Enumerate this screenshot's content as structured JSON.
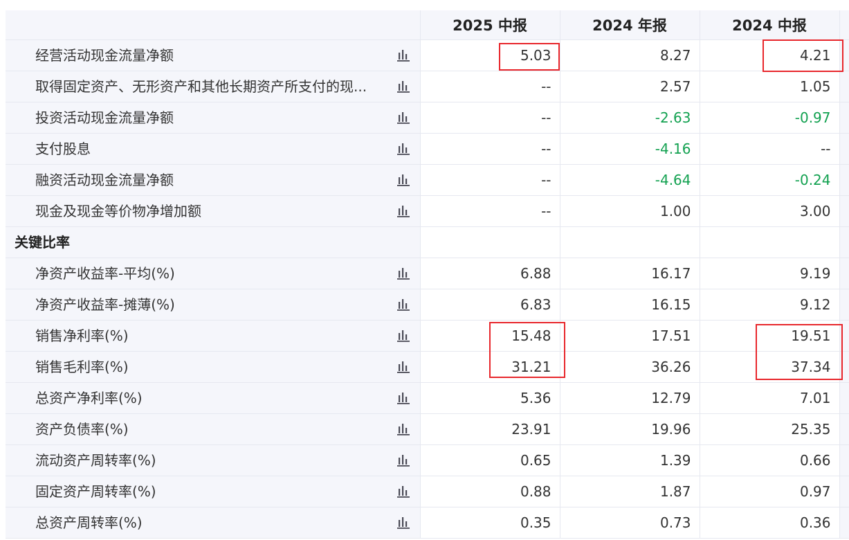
{
  "header": {
    "columns": [
      "2025 中报",
      "2024 年报",
      "2024 中报"
    ]
  },
  "rows_top": [
    {
      "label": "经营活动现金流量净额",
      "values": [
        "5.03",
        "8.27",
        "4.21"
      ],
      "neg": [
        false,
        false,
        false
      ]
    },
    {
      "label": "取得固定资产、无形资产和其他长期资产所支付的现...",
      "values": [
        "--",
        "2.57",
        "1.05"
      ],
      "neg": [
        false,
        false,
        false
      ]
    },
    {
      "label": "投资活动现金流量净额",
      "values": [
        "--",
        "-2.63",
        "-0.97"
      ],
      "neg": [
        false,
        true,
        true
      ]
    },
    {
      "label": "支付股息",
      "values": [
        "--",
        "-4.16",
        "--"
      ],
      "neg": [
        false,
        true,
        false
      ]
    },
    {
      "label": "融资活动现金流量净额",
      "values": [
        "--",
        "-4.64",
        "-0.24"
      ],
      "neg": [
        false,
        true,
        true
      ]
    },
    {
      "label": "现金及现金等价物净增加额",
      "values": [
        "--",
        "1.00",
        "3.00"
      ],
      "neg": [
        false,
        false,
        false
      ]
    }
  ],
  "section": {
    "label": "关键比率"
  },
  "rows_ratio": [
    {
      "label": "净资产收益率-平均(%)",
      "values": [
        "6.88",
        "16.17",
        "9.19"
      ]
    },
    {
      "label": "净资产收益率-摊薄(%)",
      "values": [
        "6.83",
        "16.15",
        "9.12"
      ]
    },
    {
      "label": "销售净利率(%)",
      "values": [
        "15.48",
        "17.51",
        "19.51"
      ]
    },
    {
      "label": "销售毛利率(%)",
      "values": [
        "31.21",
        "36.26",
        "37.34"
      ]
    },
    {
      "label": "总资产净利率(%)",
      "values": [
        "5.36",
        "12.79",
        "7.01"
      ]
    },
    {
      "label": "资产负债率(%)",
      "values": [
        "23.91",
        "19.96",
        "25.35"
      ]
    },
    {
      "label": "流动资产周转率(%)",
      "values": [
        "0.65",
        "1.39",
        "0.66"
      ]
    },
    {
      "label": "固定资产周转率(%)",
      "values": [
        "0.88",
        "1.87",
        "0.97"
      ]
    },
    {
      "label": "总资产周转率(%)",
      "values": [
        "0.35",
        "0.73",
        "0.36"
      ]
    }
  ],
  "icons": {
    "row_chart": "bar-chart-icon"
  },
  "colors": {
    "negative": "#12a150",
    "highlight": "#e8262b",
    "label_bg": "#f5f6fb"
  }
}
